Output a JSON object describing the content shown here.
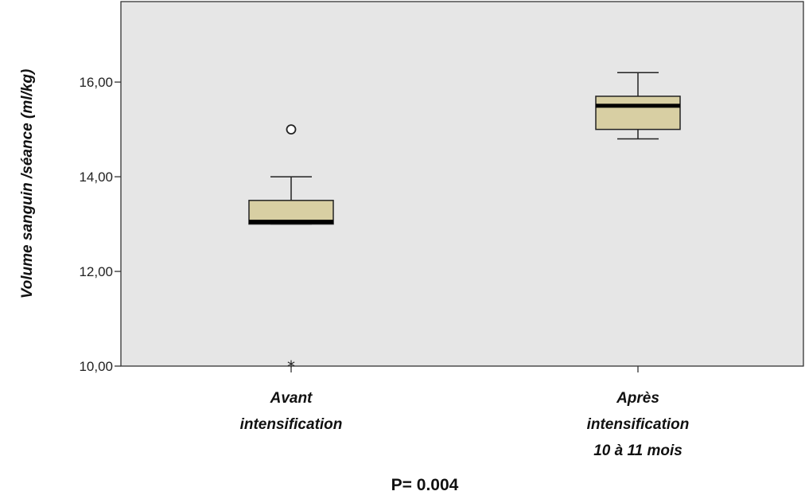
{
  "chart_data": {
    "type": "boxplot",
    "ylabel": "Volume sanguin /séance (ml/kg)",
    "ylim": [
      10,
      17.7
    ],
    "yticks": [
      10,
      12,
      14,
      16
    ],
    "ytick_labels": [
      "10,00",
      "12,00",
      "14,00",
      "16,00"
    ],
    "categories": [
      [
        "Avant",
        "intensification"
      ],
      [
        "Après",
        "intensification",
        "10 à 11 mois"
      ]
    ],
    "boxes": [
      {
        "whisker_low": 13.0,
        "q1": 13.0,
        "median": 13.05,
        "q3": 13.5,
        "whisker_high": 14.0,
        "outliers": [
          15.0
        ],
        "extremes": [
          10.0
        ]
      },
      {
        "whisker_low": 14.8,
        "q1": 15.0,
        "median": 15.5,
        "q3": 15.7,
        "whisker_high": 16.2,
        "outliers": [],
        "extremes": []
      }
    ],
    "annotation": "P= 0.004",
    "box_color": "#d8cfa3",
    "plot_background": "#e6e6e6",
    "grid": false,
    "legend": "none"
  }
}
